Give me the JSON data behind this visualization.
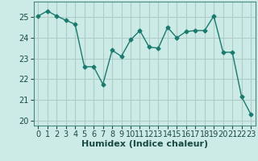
{
  "x": [
    0,
    1,
    2,
    3,
    4,
    5,
    6,
    7,
    8,
    9,
    10,
    11,
    12,
    13,
    14,
    15,
    16,
    17,
    18,
    19,
    20,
    21,
    22,
    23
  ],
  "y": [
    25.05,
    25.3,
    25.05,
    24.85,
    24.65,
    22.6,
    22.6,
    21.75,
    23.4,
    23.1,
    23.9,
    24.35,
    23.55,
    23.5,
    24.5,
    24.0,
    24.3,
    24.35,
    24.35,
    25.05,
    23.3,
    23.3,
    21.15,
    20.3
  ],
  "line_color": "#1a7a6e",
  "bg_color": "#cceae6",
  "grid_color": "#b0ccc8",
  "xlabel": "Humidex (Indice chaleur)",
  "ylim": [
    19.75,
    25.75
  ],
  "xlim": [
    -0.5,
    23.5
  ],
  "yticks": [
    20,
    21,
    22,
    23,
    24,
    25
  ],
  "xticks": [
    0,
    1,
    2,
    3,
    4,
    5,
    6,
    7,
    8,
    9,
    10,
    11,
    12,
    13,
    14,
    15,
    16,
    17,
    18,
    19,
    20,
    21,
    22,
    23
  ],
  "marker": "D",
  "marker_size": 2.5,
  "line_width": 1.0,
  "tick_fontsize": 7,
  "xlabel_fontsize": 8
}
